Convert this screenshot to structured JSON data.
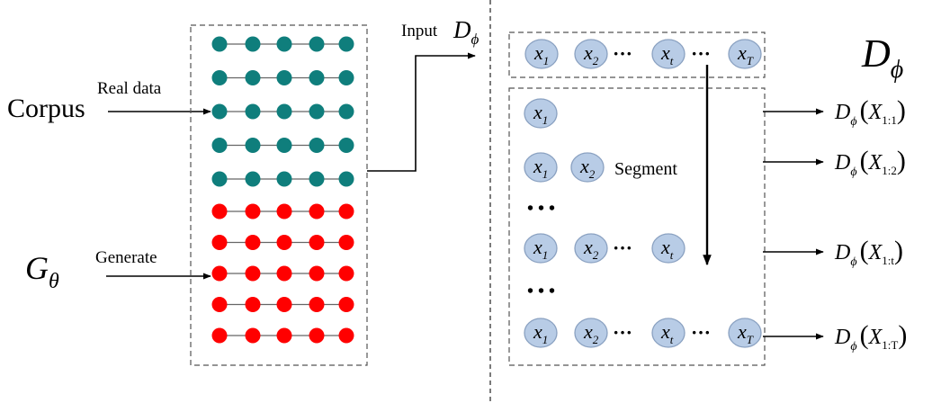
{
  "labels": {
    "corpus": "Corpus",
    "real_data": "Real data",
    "generator_symbol": "G",
    "generator_sub": "θ",
    "generate": "Generate",
    "input": "Input",
    "discriminator_symbol": "D",
    "discriminator_sub": "ϕ",
    "segment": "Segment",
    "ellipsis": "• • •"
  },
  "real_rows": 5,
  "fake_rows": 5,
  "dots_per_row": 5,
  "colors": {
    "real": "#0f7e7c",
    "fake": "#ff0000",
    "token_fill": "#b8cce6",
    "token_stroke": "#8aa1c1"
  },
  "tokens": {
    "x": "x",
    "sub_1": "1",
    "sub_2": "2",
    "sub_t": "t",
    "sub_T": "T",
    "dots": "···"
  },
  "outputs": [
    {
      "fn": "D",
      "sub": "ϕ",
      "arg": "X",
      "range": "1:1"
    },
    {
      "fn": "D",
      "sub": "ϕ",
      "arg": "X",
      "range": "1:2"
    },
    {
      "fn": "D",
      "sub": "ϕ",
      "arg": "X",
      "range": "1:t"
    },
    {
      "fn": "D",
      "sub": "ϕ",
      "arg": "X",
      "range": "1:T"
    }
  ]
}
